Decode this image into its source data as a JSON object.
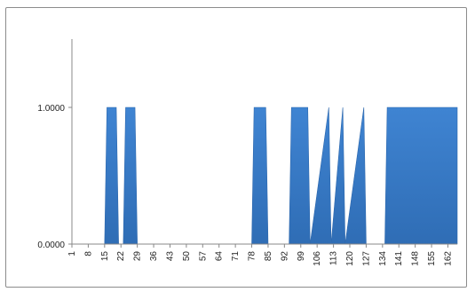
{
  "chart_data": {
    "type": "area",
    "title": "",
    "xlabel": "",
    "ylabel": "",
    "x_tick_labels": [
      "1",
      "8",
      "15",
      "22",
      "29",
      "36",
      "43",
      "50",
      "57",
      "64",
      "71",
      "78",
      "85",
      "92",
      "99",
      "106",
      "113",
      "120",
      "127",
      "134",
      "141",
      "148",
      "155",
      "162"
    ],
    "y_tick_labels": [
      "0.0000",
      "1.0000"
    ],
    "x_range": [
      1,
      166
    ],
    "ylim": [
      0,
      1.5
    ],
    "grid": false,
    "legend": "none",
    "fill_color": "#3a7dc9",
    "series": [
      {
        "x": [
          1,
          15,
          16,
          20,
          21,
          23,
          24,
          28,
          29,
          78,
          79,
          84,
          85,
          94,
          95,
          102,
          103,
          111,
          112,
          117,
          118,
          126,
          127,
          135,
          136,
          166
        ],
        "values": [
          0,
          0,
          1,
          1,
          0,
          0,
          1,
          1,
          0,
          0,
          1,
          1,
          0,
          0,
          1,
          1,
          0,
          1,
          0,
          1,
          0,
          1,
          0,
          0,
          1,
          1
        ]
      }
    ]
  }
}
